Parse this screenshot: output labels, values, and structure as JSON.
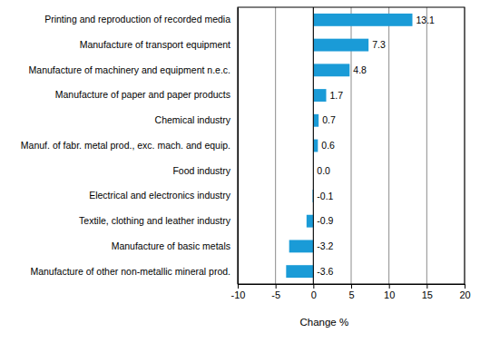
{
  "chart_data": {
    "type": "bar",
    "orientation": "horizontal",
    "categories": [
      "Printing and reproduction of recorded media",
      "Manufacture of transport equipment",
      "Manufacture of machinery and equipment n.e.c.",
      "Manufacture of paper and paper products",
      "Chemical industry",
      "Manuf. of fabr. metal prod., exc. mach. and equip.",
      "Food industry",
      "Electrical and electronics industry",
      "Textile, clothing and leather industry",
      "Manufacture of basic metals",
      "Manufacture of other non-metallic mineral prod."
    ],
    "values": [
      13.1,
      7.3,
      4.8,
      1.7,
      0.7,
      0.6,
      0.0,
      -0.1,
      -0.9,
      -3.2,
      -3.6
    ],
    "value_labels": [
      "13.1",
      "7.3",
      "4.8",
      "1.7",
      "0.7",
      "0.6",
      "0.0",
      "-0.1",
      "-0.9",
      "-3.2",
      "-3.6"
    ],
    "color": "#1a9bd7",
    "x_label": "Change %",
    "xlim": [
      -10,
      20
    ],
    "xticks": [
      -10,
      -5,
      0,
      5,
      10,
      15,
      20
    ],
    "grid": true,
    "data_labels": true
  }
}
